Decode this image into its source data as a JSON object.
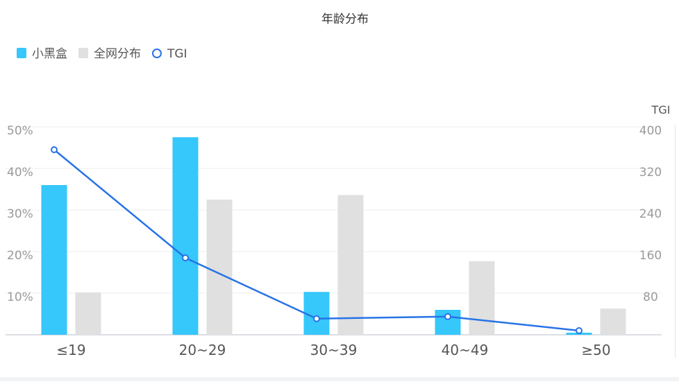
{
  "chart_data": {
    "type": "bar",
    "title": "年龄分布",
    "categories": [
      "≤19",
      "20~29",
      "30~39",
      "40~49",
      "≥50"
    ],
    "series": [
      {
        "name": "小黑盒",
        "type": "bar",
        "axis": "left",
        "color": "#36c7fb",
        "values": [
          36,
          47.5,
          10.3,
          6,
          0.5
        ]
      },
      {
        "name": "全网分布",
        "type": "bar",
        "axis": "left",
        "color": "#e0e0e0",
        "values": [
          10.2,
          32.5,
          33.6,
          17.7,
          6.3
        ]
      },
      {
        "name": "TGI",
        "type": "line",
        "axis": "right",
        "color": "#2673e6",
        "values": [
          356,
          148,
          31,
          35,
          8
        ]
      }
    ],
    "y_left": {
      "ticks": [
        "50%",
        "40%",
        "30%",
        "20%",
        "10%"
      ],
      "range": [
        0,
        50
      ]
    },
    "y_right": {
      "label": "TGI",
      "ticks": [
        "400",
        "320",
        "240",
        "160",
        "80"
      ],
      "range": [
        0,
        400
      ]
    },
    "grid": true,
    "legend_position": "top-left"
  }
}
